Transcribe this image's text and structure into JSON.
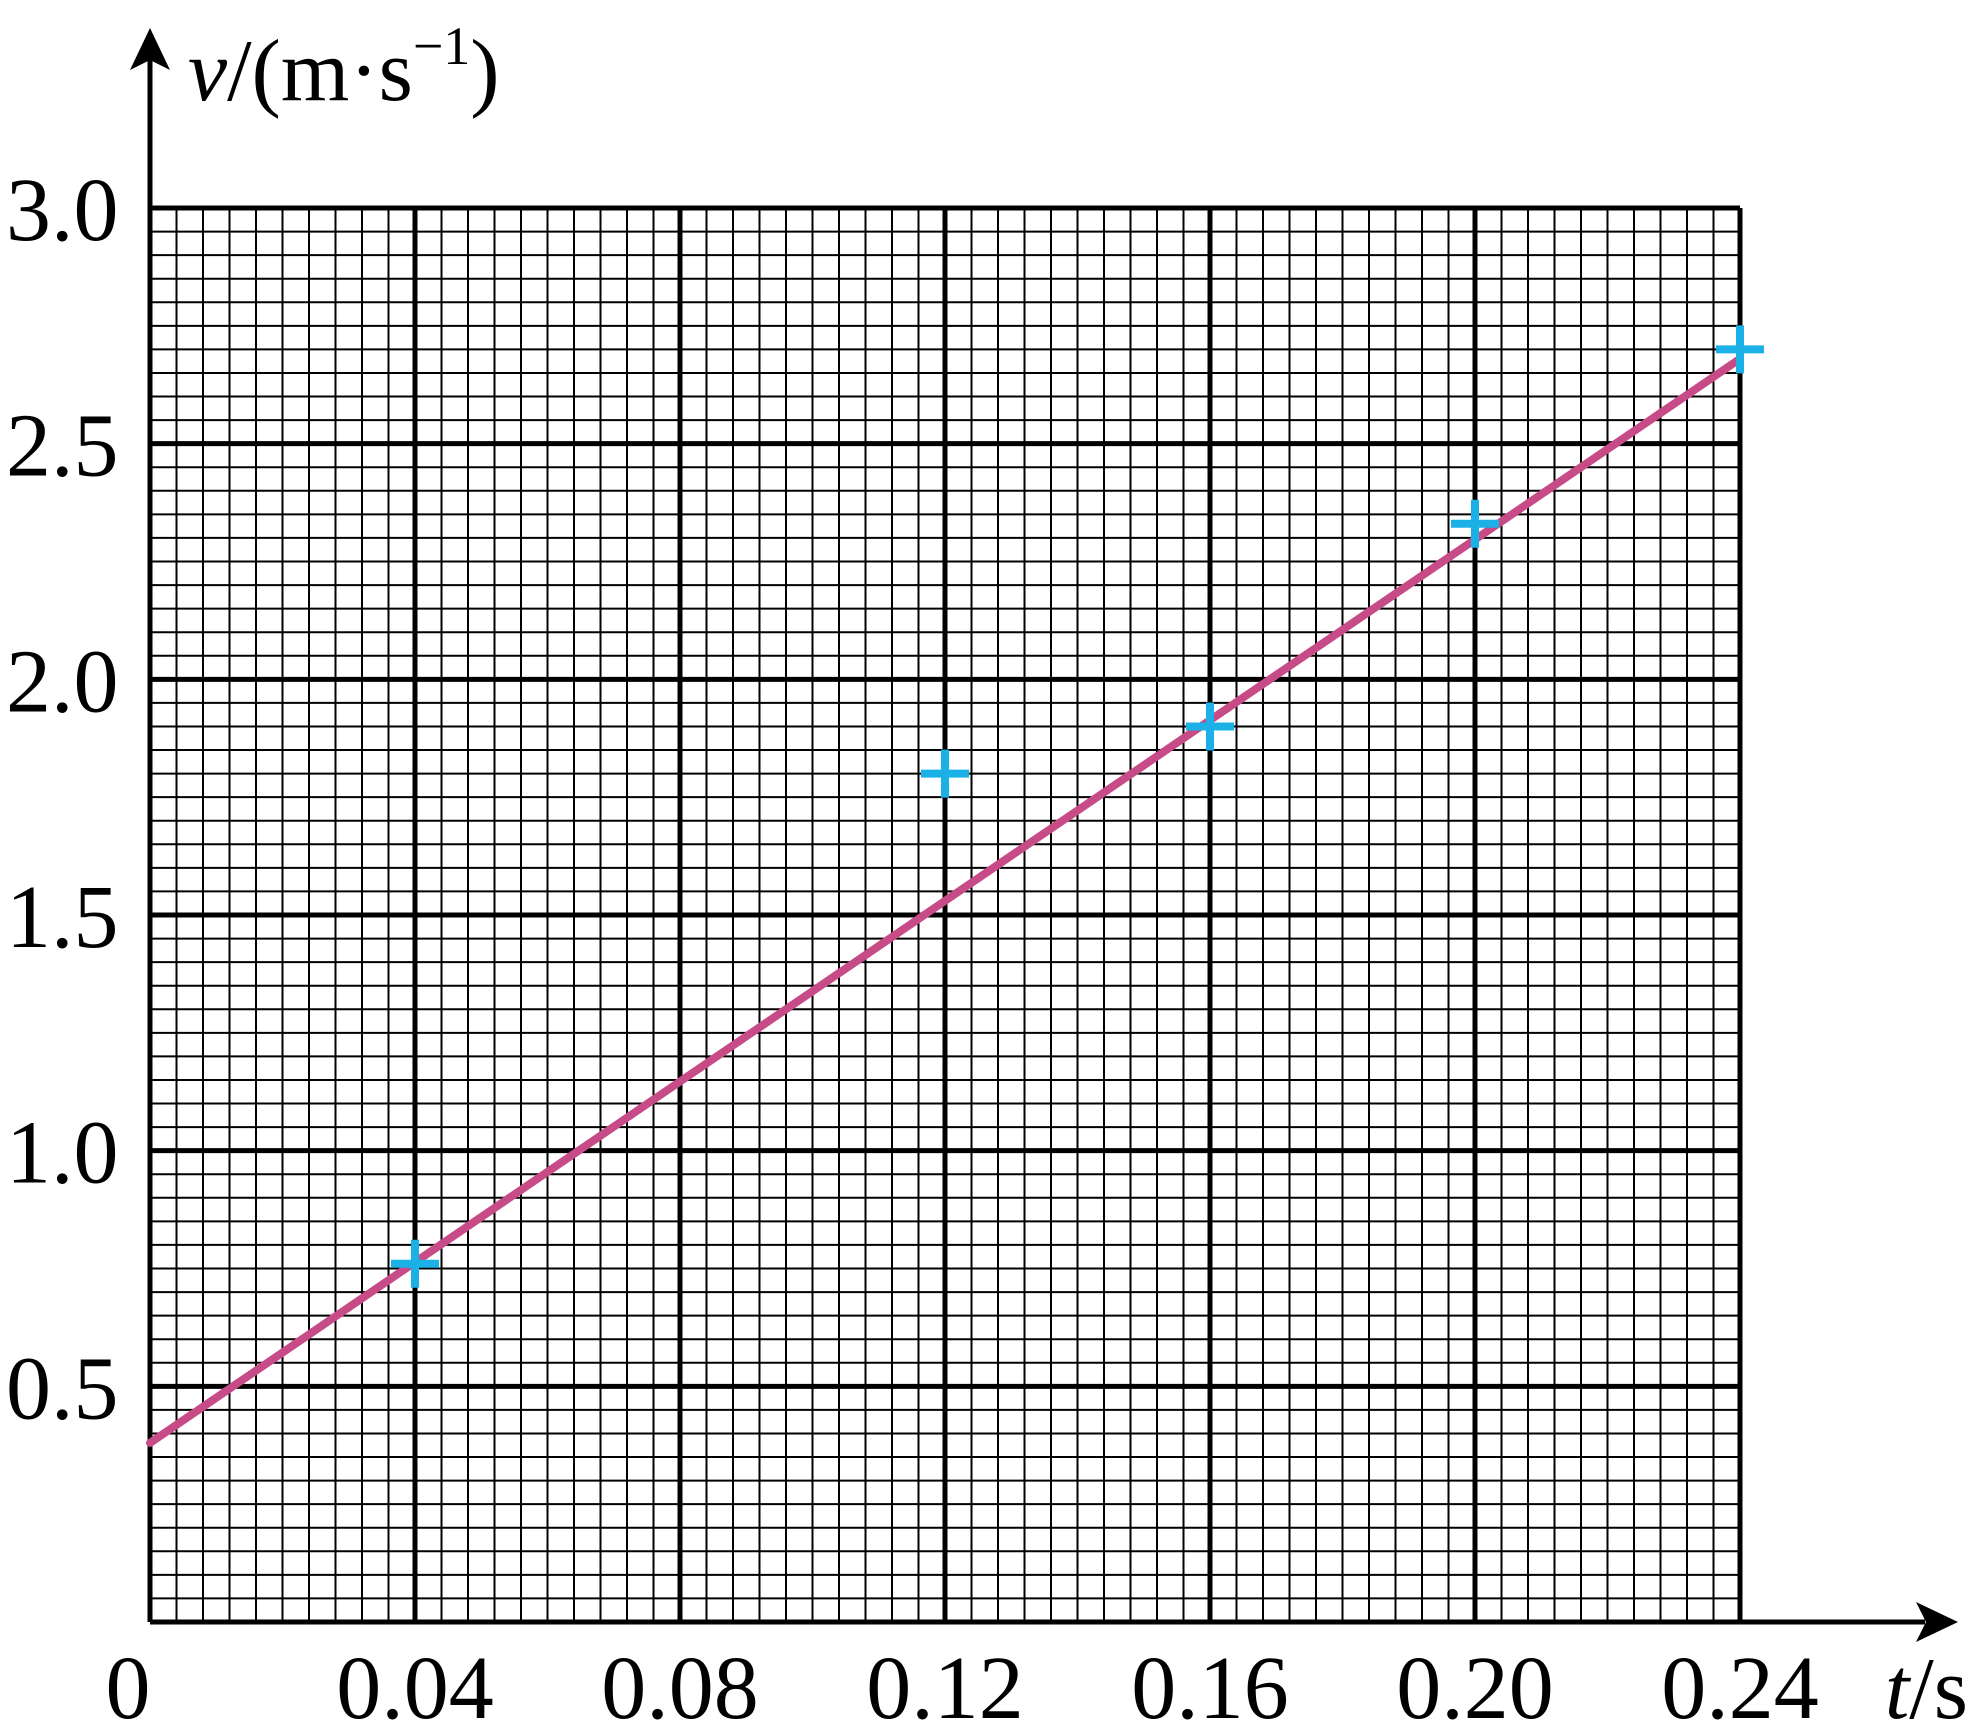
{
  "chart_data": {
    "type": "scatter",
    "x_label": {
      "var": "t",
      "unit": "/s"
    },
    "y_label": {
      "var": "v",
      "unit_open": "/(m·s",
      "sup": "−1",
      "unit_close": ")"
    },
    "origin_label": "0",
    "xlim": [
      0,
      0.24
    ],
    "ylim": [
      0,
      3.0
    ],
    "x_ticks": [
      {
        "value": 0.04,
        "label": "0.04"
      },
      {
        "value": 0.08,
        "label": "0.08"
      },
      {
        "value": 0.12,
        "label": "0.12"
      },
      {
        "value": 0.16,
        "label": "0.16"
      },
      {
        "value": 0.2,
        "label": "0.20"
      },
      {
        "value": 0.24,
        "label": "0.24"
      }
    ],
    "y_ticks": [
      {
        "value": 0.5,
        "label": "0.5"
      },
      {
        "value": 1.0,
        "label": "1.0"
      },
      {
        "value": 1.5,
        "label": "1.5"
      },
      {
        "value": 2.0,
        "label": "2.0"
      },
      {
        "value": 2.5,
        "label": "2.5"
      },
      {
        "value": 3.0,
        "label": "3.0"
      }
    ],
    "x_minor_step": 0.004,
    "y_minor_step": 0.05,
    "grid": true,
    "points": [
      {
        "x": 0.04,
        "y": 0.76
      },
      {
        "x": 0.12,
        "y": 1.8
      },
      {
        "x": 0.16,
        "y": 1.9
      },
      {
        "x": 0.2,
        "y": 2.33
      },
      {
        "x": 0.24,
        "y": 2.7
      }
    ],
    "fit_line": {
      "x": [
        0,
        0.24
      ],
      "y": [
        0.38,
        2.68
      ]
    },
    "colors": {
      "points": "#1bb0e6",
      "fit_line": "#c64b86",
      "grid": "#000000"
    }
  }
}
